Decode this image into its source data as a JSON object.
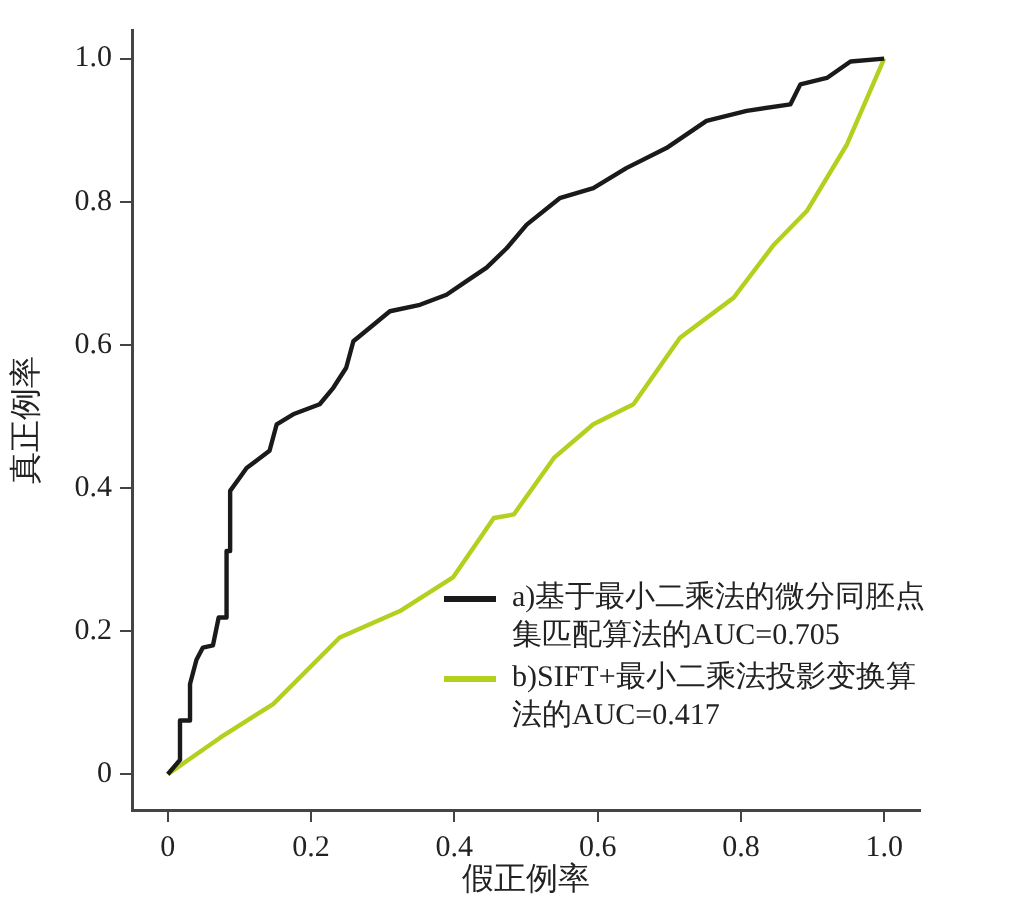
{
  "chart_data": {
    "type": "line",
    "xlabel": "假正例率",
    "ylabel": "真正例率",
    "xlim": [
      -0.05,
      1.05
    ],
    "ylim": [
      -0.05,
      1.04
    ],
    "xticks": [
      0,
      0.2,
      0.4,
      0.6,
      0.8,
      {
        "value": 1,
        "label": "1.0"
      }
    ],
    "yticks": [
      0,
      0.2,
      0.4,
      0.6,
      0.8,
      {
        "value": 1,
        "label": "1.0"
      }
    ],
    "grid": false,
    "legend": "bottom right",
    "marker": "none",
    "line_style": "solid",
    "series": [
      {
        "name": "a)基于最小二乘法的微分同胚点集匹配算法的AUC=0.705",
        "color": "#1a1a1a",
        "x": [
          0,
          0.017,
          0.017,
          0.031,
          0.031,
          0.04,
          0.049,
          0.063,
          0.071,
          0.082,
          0.082,
          0.087,
          0.087,
          0.1,
          0.11,
          0.142,
          0.152,
          0.175,
          0.212,
          0.231,
          0.249,
          0.259,
          0.282,
          0.31,
          0.352,
          0.389,
          0.417,
          0.445,
          0.473,
          0.501,
          0.547,
          0.594,
          0.64,
          0.696,
          0.752,
          0.808,
          0.869,
          0.883,
          0.92,
          0.953,
          1
        ],
        "values": [
          0,
          0.02,
          0.075,
          0.075,
          0.126,
          0.16,
          0.177,
          0.18,
          0.219,
          0.219,
          0.312,
          0.312,
          0.396,
          0.414,
          0.428,
          0.452,
          0.489,
          0.503,
          0.517,
          0.54,
          0.568,
          0.605,
          0.624,
          0.647,
          0.656,
          0.67,
          0.689,
          0.708,
          0.735,
          0.768,
          0.805,
          0.819,
          0.847,
          0.875,
          0.913,
          0.927,
          0.936,
          0.964,
          0.973,
          0.996,
          1
        ]
      },
      {
        "name": "b)SIFT+最小二乘法投影变换算法的AUC=0.417",
        "color": "#b5cf1e",
        "x": [
          0,
          0.073,
          0.147,
          0.24,
          0.324,
          0.398,
          0.436,
          0.455,
          0.483,
          0.539,
          0.594,
          0.65,
          0.715,
          0.79,
          0.846,
          0.892,
          0.948,
          1
        ],
        "values": [
          0,
          0.051,
          0.098,
          0.191,
          0.228,
          0.275,
          0.33,
          0.358,
          0.363,
          0.442,
          0.489,
          0.517,
          0.61,
          0.666,
          0.74,
          0.787,
          0.88,
          1
        ]
      }
    ]
  }
}
